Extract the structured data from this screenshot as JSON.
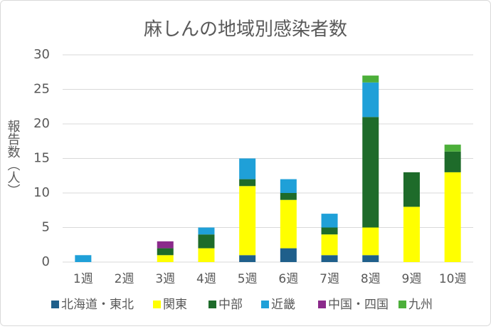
{
  "chart_data": {
    "type": "stacked_bar",
    "title": "麻しんの地域別感染者数",
    "ylabel": "報告数（人）",
    "categories": [
      "1週",
      "2週",
      "3週",
      "4週",
      "5週",
      "6週",
      "7週",
      "8週",
      "9週",
      "10週"
    ],
    "series": [
      {
        "name": "北海道・東北",
        "color": "#1f5f8b",
        "values": [
          0,
          0,
          0,
          0,
          1,
          2,
          1,
          1,
          0,
          0
        ]
      },
      {
        "name": "関東",
        "color": "#ffff00",
        "values": [
          0,
          0,
          1,
          2,
          10,
          7,
          3,
          4,
          8,
          13
        ]
      },
      {
        "name": "中部",
        "color": "#1e6b2a",
        "values": [
          0,
          0,
          1,
          2,
          1,
          1,
          1,
          16,
          5,
          3
        ]
      },
      {
        "name": "近畿",
        "color": "#1fa0d8",
        "values": [
          1,
          0,
          0,
          1,
          3,
          2,
          2,
          5,
          0,
          0
        ]
      },
      {
        "name": "中国・四国",
        "color": "#8b2a8b",
        "values": [
          0,
          0,
          1,
          0,
          0,
          0,
          0,
          0,
          0,
          0
        ]
      },
      {
        "name": "九州",
        "color": "#4caf3a",
        "values": [
          0,
          0,
          0,
          0,
          0,
          0,
          0,
          1,
          0,
          1
        ]
      }
    ],
    "ylim": [
      0,
      30
    ],
    "yticks": [
      0,
      5,
      10,
      15,
      20,
      25,
      30
    ],
    "grid": true,
    "legend": "bottom"
  }
}
